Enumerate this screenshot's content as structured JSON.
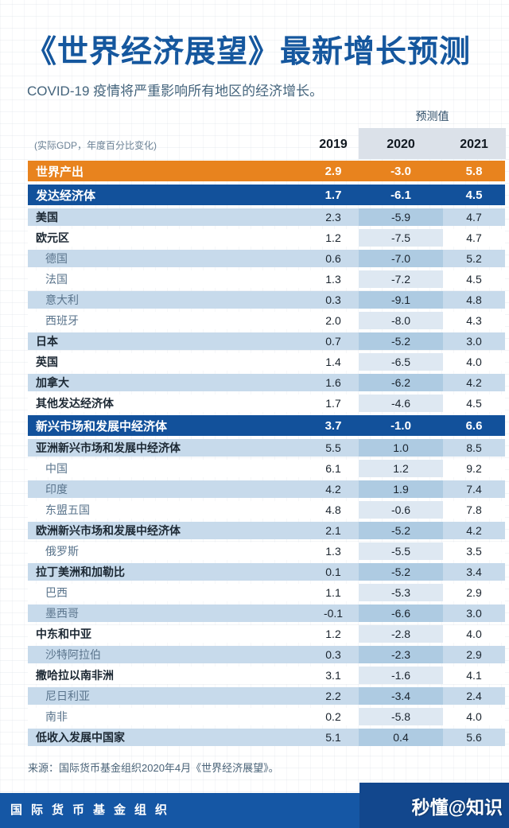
{
  "title": "《世界经济展望》最新增长预测",
  "subtitle": "COVID-19 疫情将严重影响所有地区的经济增长。",
  "header": {
    "forecast_label": "预测值",
    "unit_label": "(实际GDP，年度百分比变化)",
    "years": [
      "2019",
      "2020",
      "2021"
    ]
  },
  "chart_data": {
    "type": "table",
    "title": "《世界经济展望》最新增长预测",
    "categories": [
      "2019",
      "2020",
      "2021"
    ],
    "rows": [
      {
        "label": "世界产出",
        "values": [
          "2.9",
          "-3.0",
          "5.8"
        ],
        "tier": "world",
        "shade": "none"
      },
      {
        "label": "发达经济体",
        "values": [
          "1.7",
          "-6.1",
          "4.5"
        ],
        "tier": "group",
        "shade": "none"
      },
      {
        "label": "美国",
        "values": [
          "2.3",
          "-5.9",
          "4.7"
        ],
        "tier": "region",
        "shade": "light"
      },
      {
        "label": "欧元区",
        "values": [
          "1.2",
          "-7.5",
          "4.7"
        ],
        "tier": "region",
        "shade": "white"
      },
      {
        "label": "德国",
        "values": [
          "0.6",
          "-7.0",
          "5.2"
        ],
        "tier": "country",
        "shade": "light"
      },
      {
        "label": "法国",
        "values": [
          "1.3",
          "-7.2",
          "4.5"
        ],
        "tier": "country",
        "shade": "white"
      },
      {
        "label": "意大利",
        "values": [
          "0.3",
          "-9.1",
          "4.8"
        ],
        "tier": "country",
        "shade": "light"
      },
      {
        "label": "西班牙",
        "values": [
          "2.0",
          "-8.0",
          "4.3"
        ],
        "tier": "country",
        "shade": "white"
      },
      {
        "label": "日本",
        "values": [
          "0.7",
          "-5.2",
          "3.0"
        ],
        "tier": "region",
        "shade": "light"
      },
      {
        "label": "英国",
        "values": [
          "1.4",
          "-6.5",
          "4.0"
        ],
        "tier": "region",
        "shade": "white"
      },
      {
        "label": "加拿大",
        "values": [
          "1.6",
          "-6.2",
          "4.2"
        ],
        "tier": "region",
        "shade": "light"
      },
      {
        "label": "其他发达经济体",
        "values": [
          "1.7",
          "-4.6",
          "4.5"
        ],
        "tier": "region",
        "shade": "white"
      },
      {
        "label": "新兴市场和发展中经济体",
        "values": [
          "3.7",
          "-1.0",
          "6.6"
        ],
        "tier": "group",
        "shade": "none"
      },
      {
        "label": "亚洲新兴市场和发展中经济体",
        "values": [
          "5.5",
          "1.0",
          "8.5"
        ],
        "tier": "region",
        "shade": "light"
      },
      {
        "label": "中国",
        "values": [
          "6.1",
          "1.2",
          "9.2"
        ],
        "tier": "country",
        "shade": "white"
      },
      {
        "label": "印度",
        "values": [
          "4.2",
          "1.9",
          "7.4"
        ],
        "tier": "country",
        "shade": "light"
      },
      {
        "label": "东盟五国",
        "values": [
          "4.8",
          "-0.6",
          "7.8"
        ],
        "tier": "country",
        "shade": "white"
      },
      {
        "label": "欧洲新兴市场和发展中经济体",
        "values": [
          "2.1",
          "-5.2",
          "4.2"
        ],
        "tier": "region",
        "shade": "light"
      },
      {
        "label": "俄罗斯",
        "values": [
          "1.3",
          "-5.5",
          "3.5"
        ],
        "tier": "country",
        "shade": "white"
      },
      {
        "label": "拉丁美洲和加勒比",
        "values": [
          "0.1",
          "-5.2",
          "3.4"
        ],
        "tier": "region",
        "shade": "light"
      },
      {
        "label": "巴西",
        "values": [
          "1.1",
          "-5.3",
          "2.9"
        ],
        "tier": "country",
        "shade": "white"
      },
      {
        "label": "墨西哥",
        "values": [
          "-0.1",
          "-6.6",
          "3.0"
        ],
        "tier": "country",
        "shade": "light"
      },
      {
        "label": "中东和中亚",
        "values": [
          "1.2",
          "-2.8",
          "4.0"
        ],
        "tier": "region",
        "shade": "white"
      },
      {
        "label": "沙特阿拉伯",
        "values": [
          "0.3",
          "-2.3",
          "2.9"
        ],
        "tier": "country",
        "shade": "light"
      },
      {
        "label": "撒哈拉以南非洲",
        "values": [
          "3.1",
          "-1.6",
          "4.1"
        ],
        "tier": "region",
        "shade": "white"
      },
      {
        "label": "尼日利亚",
        "values": [
          "2.2",
          "-3.4",
          "2.4"
        ],
        "tier": "country",
        "shade": "light"
      },
      {
        "label": "南非",
        "values": [
          "0.2",
          "-5.8",
          "4.0"
        ],
        "tier": "country",
        "shade": "white"
      },
      {
        "label": "低收入发展中国家",
        "values": [
          "5.1",
          "0.4",
          "5.6"
        ],
        "tier": "region",
        "shade": "light"
      }
    ]
  },
  "source": "来源：国际货币基金组织2020年4月《世界经济展望》。",
  "footer_bar": {
    "org": "国际货币基金组织",
    "watermark": "秒懂@知识"
  },
  "colors": {
    "title_blue": "#15579E",
    "subtitle_slate": "#44647C",
    "accent_orange": "#E8831E",
    "accent_blue": "#12519B",
    "row_light": "#C7DAEB",
    "row_white": "#FFFFFF",
    "cell2020_on_light": "#AECBE2",
    "cell2020_on_white": "#DEE8F2",
    "header_band": "#DBE1E9",
    "region_label": "#1C2833",
    "country_label": "#5A748C",
    "value_text": "#1A242E",
    "unit_label": "#6A8094",
    "source_text": "#4A6378",
    "footer_navy": "#1557A5",
    "watermark_block": "#12478D"
  }
}
